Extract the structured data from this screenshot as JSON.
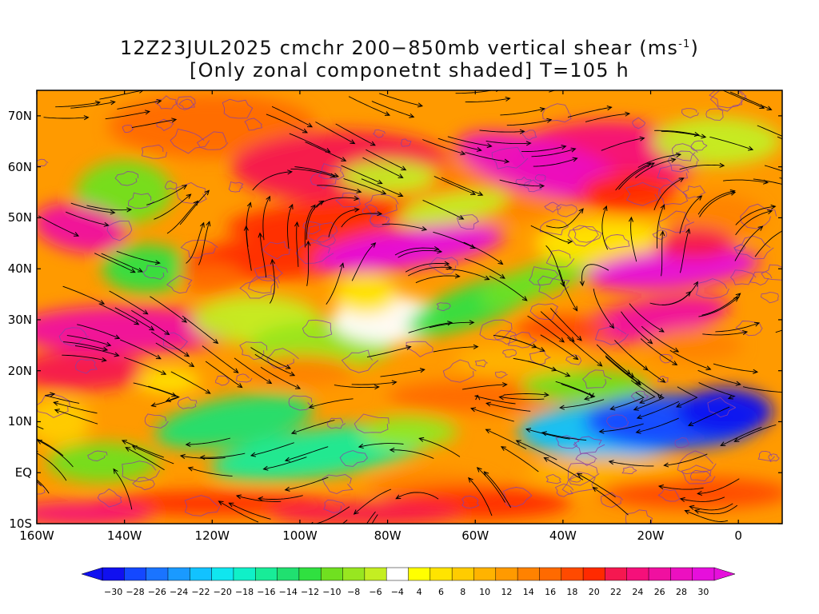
{
  "title": {
    "line1_main": "12Z23JUL2025 cmchr 200−850mb vertical shear (ms",
    "line1_sup": "-1",
    "line1_end": ")",
    "line2": "[Only zonal componetnt shaded] T=105 h"
  },
  "map": {
    "lat_labels": [
      "70N",
      "60N",
      "50N",
      "40N",
      "30N",
      "20N",
      "10N",
      "EQ",
      "10S"
    ],
    "lon_labels": [
      "160W",
      "140W",
      "120W",
      "100W",
      "80W",
      "60W",
      "40W",
      "20W",
      "0"
    ],
    "colors": {
      "streamline": "#000000",
      "contour": "#8a3fa6"
    }
  },
  "colorbar": {
    "labels": [
      "-30",
      "-28",
      "-26",
      "-24",
      "-22",
      "-20",
      "-18",
      "-16",
      "-14",
      "-12",
      "-10",
      "-8",
      "-6",
      "-4",
      "4",
      "6",
      "8",
      "10",
      "12",
      "14",
      "16",
      "18",
      "20",
      "22",
      "24",
      "26",
      "28",
      "30"
    ],
    "colors": [
      "#1010f0",
      "#1448ff",
      "#1a74ff",
      "#1a9aff",
      "#12c2ff",
      "#10e6ef",
      "#10f0c8",
      "#18ec98",
      "#20e070",
      "#30e040",
      "#70e020",
      "#98e620",
      "#c4ee22",
      "#ffffff",
      "#ffff00",
      "#ffe400",
      "#ffcc00",
      "#ffb300",
      "#ff9a00",
      "#ff8200",
      "#ff6a00",
      "#ff4a00",
      "#ff2a00",
      "#f51850",
      "#f5107a",
      "#f010a0",
      "#ec10c0",
      "#e60fdc"
    ]
  }
}
